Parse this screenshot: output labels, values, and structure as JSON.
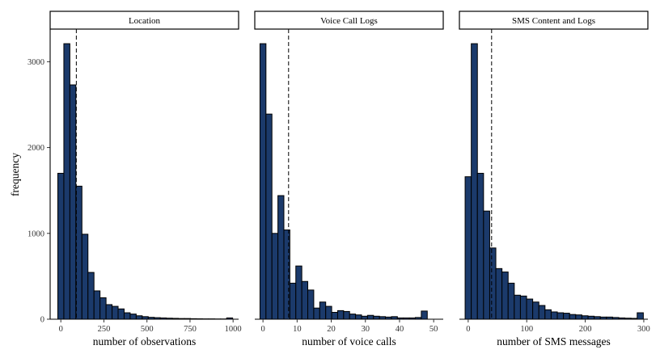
{
  "chart_data": {
    "type": "bar",
    "bar_color": "#1b3a6b",
    "ylabel": "frequency",
    "ylim": [
      0,
      3380
    ],
    "yticks": [
      0,
      1000,
      2000,
      3000
    ],
    "panels": [
      {
        "strip": "Location",
        "xlabel": "number of observations",
        "xlim": [
          -62,
          1032
        ],
        "xticks": [
          0,
          250,
          500,
          750,
          1000
        ],
        "bin_width": 35,
        "bin_start": -17.5,
        "values": [
          1700,
          3210,
          2730,
          1550,
          990,
          545,
          330,
          250,
          170,
          150,
          120,
          75,
          60,
          40,
          30,
          22,
          18,
          15,
          12,
          10,
          8,
          8,
          6,
          5,
          4,
          4,
          3,
          3,
          15
        ],
        "reference_line": 90
      },
      {
        "strip": "Voice Call Logs",
        "xlabel": "number of voice calls",
        "xlim": [
          -2.4,
          52.8
        ],
        "xticks": [
          0,
          10,
          20,
          30,
          40,
          50
        ],
        "bin_width": 1.75,
        "bin_start": -0.875,
        "values": [
          3210,
          2390,
          1000,
          1440,
          1040,
          420,
          620,
          440,
          340,
          130,
          200,
          150,
          80,
          100,
          90,
          60,
          50,
          35,
          45,
          35,
          30,
          25,
          30,
          15,
          15,
          15,
          20,
          95
        ],
        "reference_line": 7.5
      },
      {
        "strip": "SMS Content and Logs",
        "xlabel": "number of SMS messages",
        "xlim": [
          -15,
          307
        ],
        "xticks": [
          0,
          100,
          200,
          300
        ],
        "bin_width": 10.5,
        "bin_start": -5.25,
        "values": [
          1660,
          3210,
          1700,
          1260,
          830,
          590,
          550,
          420,
          280,
          270,
          235,
          200,
          160,
          110,
          85,
          75,
          70,
          55,
          50,
          40,
          35,
          30,
          25,
          25,
          20,
          15,
          12,
          10,
          75
        ],
        "reference_line": 40
      }
    ]
  }
}
